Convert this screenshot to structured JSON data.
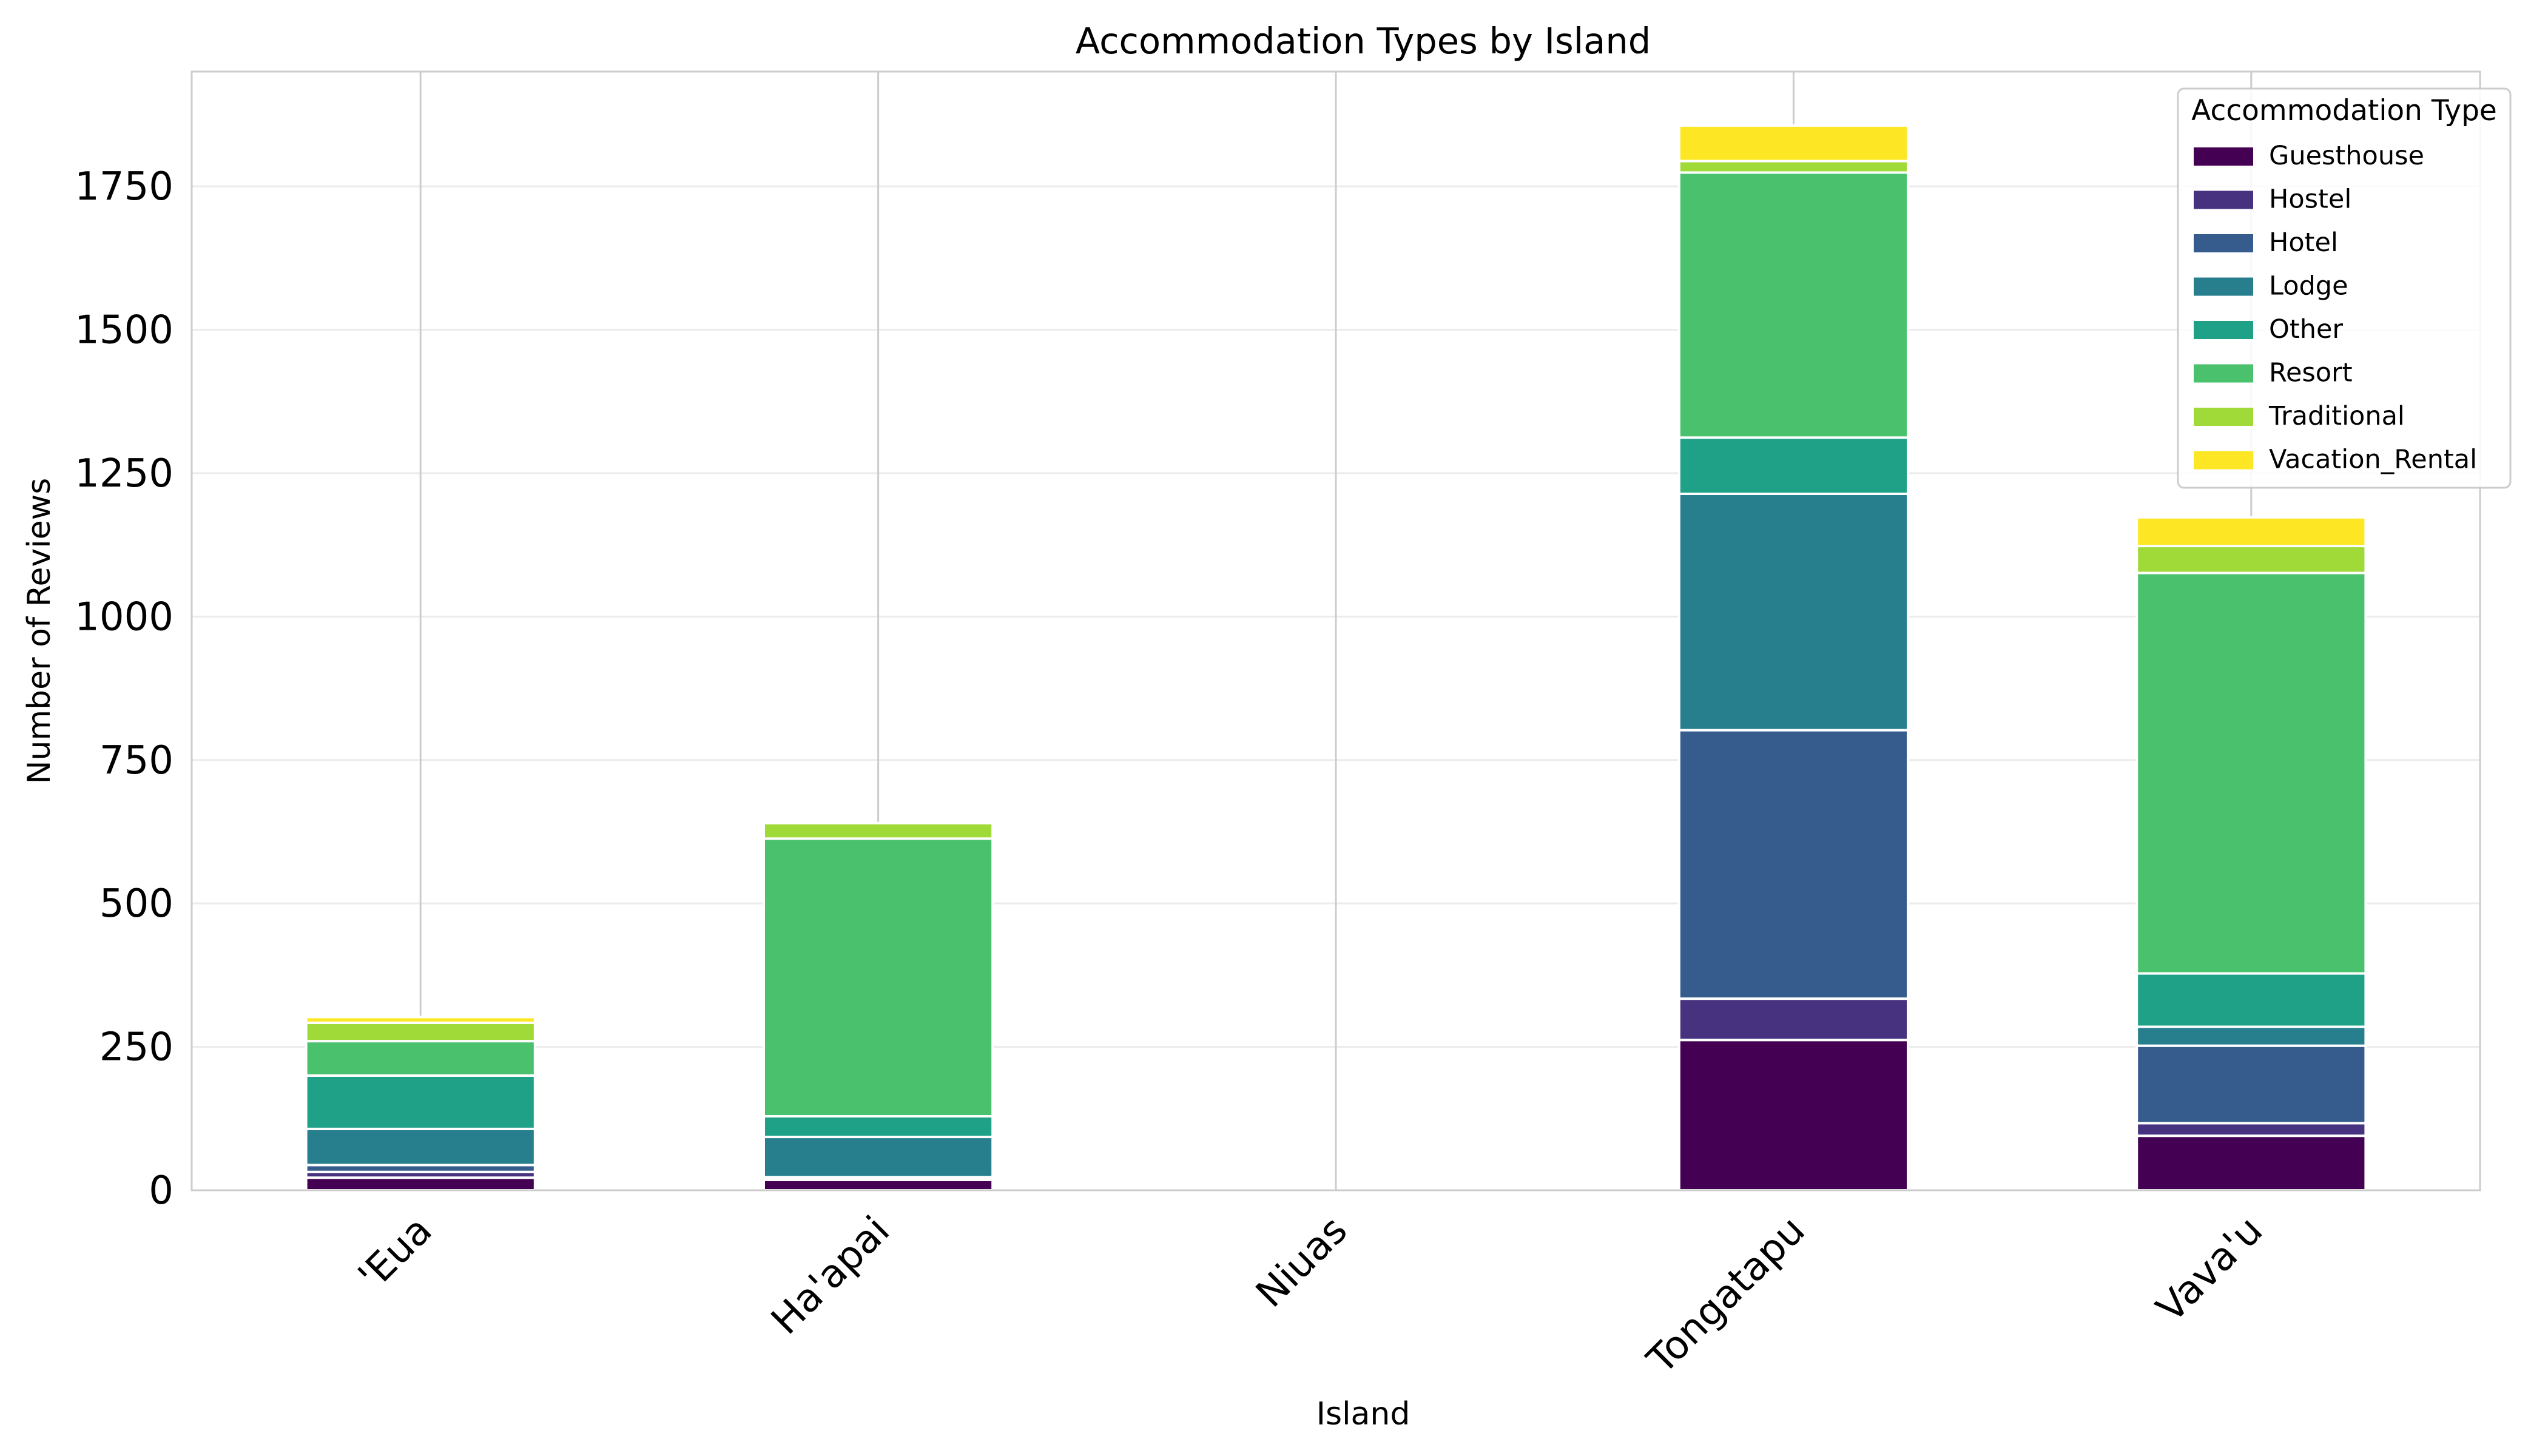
{
  "chart_data": {
    "type": "bar",
    "stacked": true,
    "title": "Accommodation Types by Island",
    "xlabel": "Island",
    "ylabel": "Number of Reviews",
    "categories": [
      "'Eua",
      "Ha'apai",
      "Niuas",
      "Tongatapu",
      "Vava'u"
    ],
    "ylim": [
      0,
      1950
    ],
    "yticks": [
      0,
      250,
      500,
      750,
      1000,
      1250,
      1500,
      1750
    ],
    "grid": true,
    "legend": {
      "title": "Accommodation Type",
      "placement": "top-right"
    },
    "series": [
      {
        "name": "Guesthouse",
        "color": "#440154",
        "values": [
          22,
          18,
          0,
          262,
          95
        ]
      },
      {
        "name": "Hostel",
        "color": "#46327e",
        "values": [
          10,
          3,
          0,
          72,
          22
        ]
      },
      {
        "name": "Hotel",
        "color": "#365c8d",
        "values": [
          12,
          2,
          0,
          468,
          135
        ]
      },
      {
        "name": "Lodge",
        "color": "#277f8e",
        "values": [
          63,
          70,
          0,
          412,
          33
        ]
      },
      {
        "name": "Other",
        "color": "#1fa187",
        "values": [
          93,
          36,
          0,
          98,
          93
        ]
      },
      {
        "name": "Resort",
        "color": "#4ac16d",
        "values": [
          60,
          484,
          0,
          462,
          698
        ]
      },
      {
        "name": "Traditional",
        "color": "#a0da39",
        "values": [
          32,
          27,
          0,
          20,
          47
        ]
      },
      {
        "name": "Vacation_Rental",
        "color": "#fde725",
        "values": [
          10,
          0,
          0,
          62,
          50
        ]
      }
    ]
  }
}
